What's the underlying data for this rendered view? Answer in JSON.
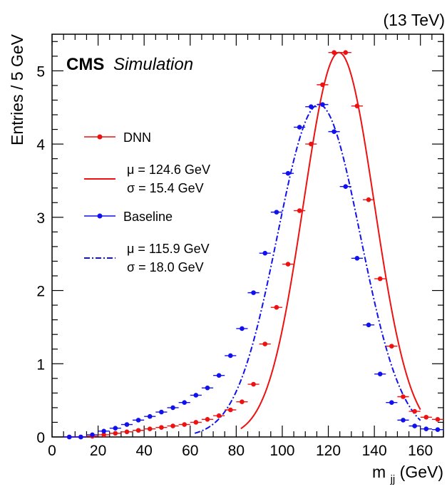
{
  "energy_label": "(13 TeV)",
  "cms_label": "CMS",
  "cms_sublabel": "Simulation",
  "legend": {
    "dnn_label": "DNN",
    "dnn_mu": "μ = 124.6 GeV",
    "dnn_sigma": "σ = 15.4 GeV",
    "baseline_label": "Baseline",
    "baseline_mu": "μ = 115.9 GeV",
    "baseline_sigma": "σ = 18.0 GeV"
  },
  "colors": {
    "dnn": "#ee1111",
    "baseline": "#1111ee"
  },
  "chart_data": {
    "type": "scatter",
    "xlabel": "m",
    "xlabel_sub": "jj",
    "xlabel_unit": " (GeV)",
    "ylabel": "Entries / 5 GeV",
    "xlim": [
      0,
      170
    ],
    "ylim": [
      0,
      5.5
    ],
    "bin_width": 5,
    "x_ticks": [
      0,
      20,
      40,
      60,
      80,
      100,
      120,
      140,
      160
    ],
    "y_ticks": [
      0,
      1,
      2,
      3,
      4,
      5
    ],
    "x": [
      7.5,
      12.5,
      17.5,
      22.5,
      27.5,
      32.5,
      37.5,
      42.5,
      47.5,
      52.5,
      57.5,
      62.5,
      67.5,
      72.5,
      77.5,
      82.5,
      87.5,
      92.5,
      97.5,
      102.5,
      107.5,
      112.5,
      117.5,
      122.5,
      127.5,
      132.5,
      137.5,
      142.5,
      147.5,
      152.5,
      157.5,
      162.5,
      167.5
    ],
    "series": [
      {
        "name": "DNN",
        "values": [
          0.0,
          0.0,
          0.01,
          0.03,
          0.05,
          0.07,
          0.09,
          0.11,
          0.13,
          0.15,
          0.17,
          0.2,
          0.24,
          0.29,
          0.37,
          0.48,
          0.72,
          1.27,
          1.77,
          2.36,
          3.09,
          4.0,
          4.81,
          5.25,
          5.25,
          4.52,
          3.24,
          2.16,
          1.24,
          0.55,
          0.35,
          0.27,
          0.24
        ],
        "fit_mu": 124.6,
        "fit_sigma": 15.4
      },
      {
        "name": "Baseline",
        "values": [
          0.0,
          0.0,
          0.03,
          0.08,
          0.12,
          0.17,
          0.23,
          0.28,
          0.34,
          0.4,
          0.47,
          0.57,
          0.67,
          0.84,
          1.11,
          1.48,
          1.97,
          2.51,
          3.07,
          3.6,
          4.23,
          4.51,
          4.54,
          4.17,
          3.42,
          2.44,
          1.53,
          0.86,
          0.47,
          0.23,
          0.15,
          0.11,
          0.1
        ],
        "fit_mu": 115.9,
        "fit_sigma": 18.0
      }
    ]
  }
}
